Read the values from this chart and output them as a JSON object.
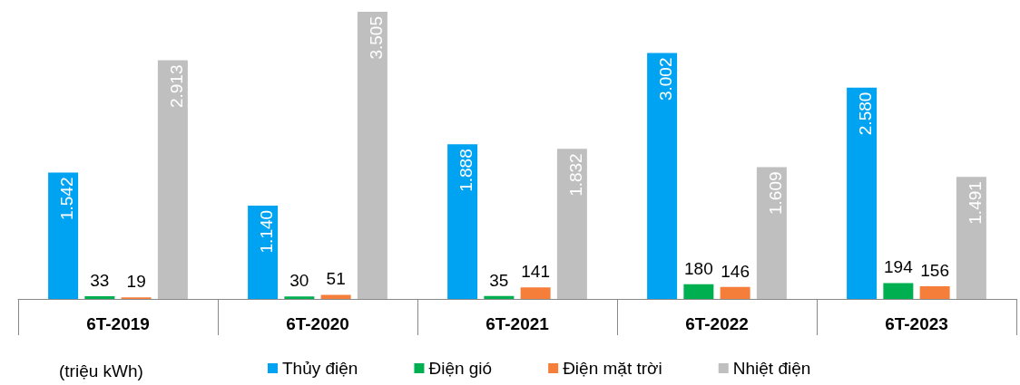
{
  "chart_data": {
    "type": "bar",
    "categories": [
      "6T-2019",
      "6T-2020",
      "6T-2021",
      "6T-2022",
      "6T-2023"
    ],
    "series": [
      {
        "name": "Thủy điện",
        "color": "#00a2f2",
        "values": [
          1542,
          1140,
          1888,
          3002,
          2580
        ],
        "value_labels": [
          "1.542",
          "1.140",
          "1.888",
          "3.002",
          "2.580"
        ]
      },
      {
        "name": "Điện gió",
        "color": "#00b050",
        "values": [
          33,
          30,
          35,
          180,
          194
        ],
        "value_labels": [
          "33",
          "30",
          "35",
          "180",
          "194"
        ]
      },
      {
        "name": "Điện mặt trời",
        "color": "#f47e3a",
        "values": [
          19,
          51,
          141,
          146,
          156
        ],
        "value_labels": [
          "19",
          "51",
          "141",
          "146",
          "156"
        ]
      },
      {
        "name": "Nhiệt điện",
        "color": "#bfbfbf",
        "values": [
          2913,
          3505,
          1832,
          1609,
          1491
        ],
        "value_labels": [
          "2.913",
          "3.505",
          "1.832",
          "1.609",
          "1.491"
        ]
      }
    ],
    "annotations": [
      "(triệu kWh)"
    ],
    "legend": "bottom"
  }
}
